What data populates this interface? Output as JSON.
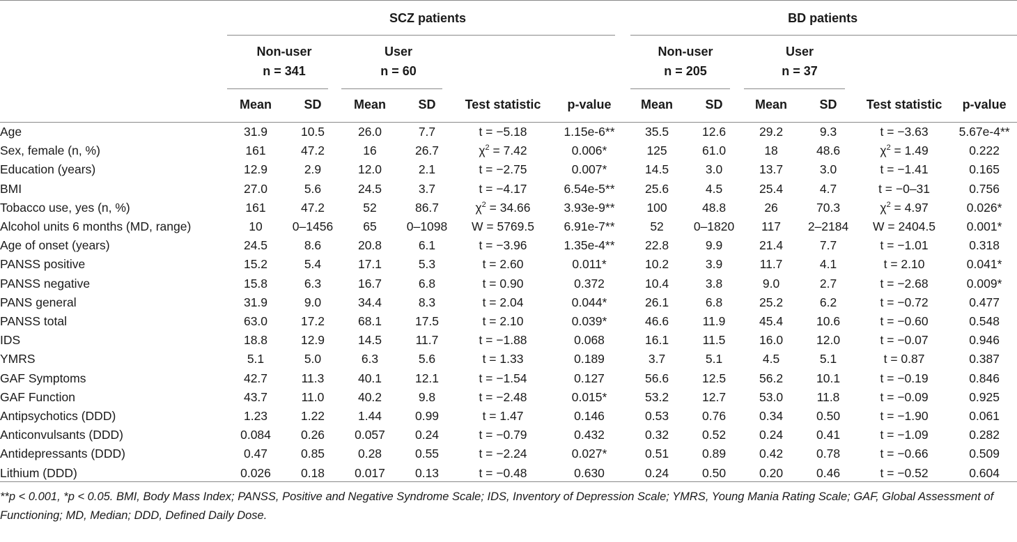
{
  "groups": {
    "scz": "SCZ patients",
    "bd": "BD patients"
  },
  "subgroups": {
    "scz_nonuser": {
      "name": "Non-user",
      "n": "n = 341"
    },
    "scz_user": {
      "name": "User",
      "n": "n = 60"
    },
    "bd_nonuser": {
      "name": "Non-user",
      "n": "n = 205"
    },
    "bd_user": {
      "name": "User",
      "n": "n = 37"
    }
  },
  "columns": {
    "mean": "Mean",
    "sd": "SD",
    "test": "Test statistic",
    "p": "p-value"
  },
  "rows": [
    [
      "Age",
      "31.9",
      "10.5",
      "26.0",
      "7.7",
      "t = −5.18",
      "1.15e-6**",
      "35.5",
      "12.6",
      "29.2",
      "9.3",
      "t = −3.63",
      "5.67e-4**"
    ],
    [
      "Sex, female (n, %)",
      "161",
      "47.2",
      "16",
      "26.7",
      "χ2 = 7.42",
      "0.006*",
      "125",
      "61.0",
      "18",
      "48.6",
      "χ2 = 1.49",
      "0.222"
    ],
    [
      "Education (years)",
      "12.9",
      "2.9",
      "12.0",
      "2.1",
      "t = −2.75",
      "0.007*",
      "14.5",
      "3.0",
      "13.7",
      "3.0",
      "t = −1.41",
      "0.165"
    ],
    [
      "BMI",
      "27.0",
      "5.6",
      "24.5",
      "3.7",
      "t = −4.17",
      "6.54e-5**",
      "25.6",
      "4.5",
      "25.4",
      "4.7",
      "t = −0–31",
      "0.756"
    ],
    [
      "Tobacco use, yes (n, %)",
      "161",
      "47.2",
      "52",
      "86.7",
      "χ2 = 34.66",
      "3.93e-9**",
      "100",
      "48.8",
      "26",
      "70.3",
      "χ2 = 4.97",
      "0.026*"
    ],
    [
      "Alcohol units 6 months (MD, range)",
      "10",
      "0–1456",
      "65",
      "0–1098",
      "W = 5769.5",
      "6.91e-7**",
      "52",
      "0–1820",
      "117",
      "2–2184",
      "W = 2404.5",
      "0.001*"
    ],
    [
      "Age of onset (years)",
      "24.5",
      "8.6",
      "20.8",
      "6.1",
      "t = −3.96",
      "1.35e-4**",
      "22.8",
      "9.9",
      "21.4",
      "7.7",
      "t = −1.01",
      "0.318"
    ],
    [
      "PANSS positive",
      "15.2",
      "5.4",
      "17.1",
      "5.3",
      "t = 2.60",
      "0.011*",
      "10.2",
      "3.9",
      "11.7",
      "4.1",
      "t = 2.10",
      "0.041*"
    ],
    [
      "PANSS negative",
      "15.8",
      "6.3",
      "16.7",
      "6.8",
      "t = 0.90",
      "0.372",
      "10.4",
      "3.8",
      "9.0",
      "2.7",
      "t = −2.68",
      "0.009*"
    ],
    [
      "PANS general",
      "31.9",
      "9.0",
      "34.4",
      "8.3",
      "t = 2.04",
      "0.044*",
      "26.1",
      "6.8",
      "25.2",
      "6.2",
      "t = −0.72",
      "0.477"
    ],
    [
      "PANSS total",
      "63.0",
      "17.2",
      "68.1",
      "17.5",
      "t = 2.10",
      "0.039*",
      "46.6",
      "11.9",
      "45.4",
      "10.6",
      "t = −0.60",
      "0.548"
    ],
    [
      "IDS",
      "18.8",
      "12.9",
      "14.5",
      "11.7",
      "t = −1.88",
      "0.068",
      "16.1",
      "11.5",
      "16.0",
      "12.0",
      "t = −0.07",
      "0.946"
    ],
    [
      "YMRS",
      "5.1",
      "5.0",
      "6.3",
      "5.6",
      "t = 1.33",
      "0.189",
      "3.7",
      "5.1",
      "4.5",
      "5.1",
      "t = 0.87",
      "0.387"
    ],
    [
      "GAF Symptoms",
      "42.7",
      "11.3",
      "40.1",
      "12.1",
      "t = −1.54",
      "0.127",
      "56.6",
      "12.5",
      "56.2",
      "10.1",
      "t = −0.19",
      "0.846"
    ],
    [
      "GAF Function",
      "43.7",
      "11.0",
      "40.2",
      "9.8",
      "t = −2.48",
      "0.015*",
      "53.2",
      "12.7",
      "53.0",
      "11.8",
      "t = −0.09",
      "0.925"
    ],
    [
      "Antipsychotics (DDD)",
      "1.23",
      "1.22",
      "1.44",
      "0.99",
      "t = 1.47",
      "0.146",
      "0.53",
      "0.76",
      "0.34",
      "0.50",
      "t = −1.90",
      "0.061"
    ],
    [
      "Anticonvulsants (DDD)",
      "0.084",
      "0.26",
      "0.057",
      "0.24",
      "t = −0.79",
      "0.432",
      "0.32",
      "0.52",
      "0.24",
      "0.41",
      "t = −1.09",
      "0.282"
    ],
    [
      "Antidepressants (DDD)",
      "0.47",
      "0.85",
      "0.28",
      "0.55",
      "t = −2.24",
      "0.027*",
      "0.51",
      "0.89",
      "0.42",
      "0.78",
      "t = −0.66",
      "0.509"
    ],
    [
      "Lithium (DDD)",
      "0.026",
      "0.18",
      "0.017",
      "0.13",
      "t = −0.48",
      "0.630",
      "0.24",
      "0.50",
      "0.20",
      "0.46",
      "t = −0.52",
      "0.604"
    ]
  ],
  "footnote": "**p < 0.001, *p < 0.05. BMI, Body Mass Index; PANSS, Positive and Negative Syndrome Scale; IDS, Inventory of Depression Scale; YMRS, Young Mania Rating Scale; GAF, Global Assessment of Functioning; MD, Median; DDD, Defined Daily Dose."
}
